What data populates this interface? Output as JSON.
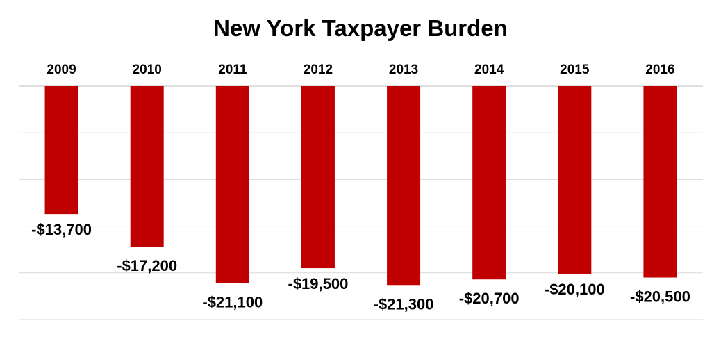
{
  "chart_data": {
    "type": "bar",
    "title": "New York Taxpayer Burden",
    "categories": [
      "2009",
      "2010",
      "2011",
      "2012",
      "2013",
      "2014",
      "2015",
      "2016"
    ],
    "values": [
      -13700,
      -17200,
      -21100,
      -19500,
      -21300,
      -20700,
      -20100,
      -20500
    ],
    "data_labels": [
      "-$13,700",
      "-$17,200",
      "-$21,100",
      "-$19,500",
      "-$21,300",
      "-$20,700",
      "-$20,100",
      "-$20,500"
    ],
    "ylim": [
      -25000,
      0
    ],
    "grid": true,
    "category_axis_position": "top",
    "bar_color": "#c00000",
    "grid_color": "#d9d9d9"
  }
}
